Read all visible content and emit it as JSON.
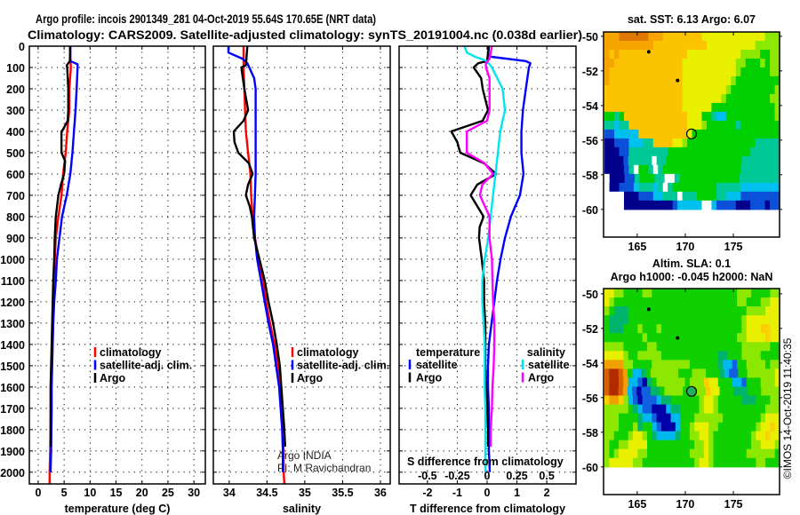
{
  "title": {
    "line1": "Argo profile: incois 2901349_281 04-Oct-2019 55.64S 170.65E (NRT data)",
    "line2": "Climatology: CARS2009. Satellite-adjusted climatology: synTS_20191004.nc (0.038d earlier)"
  },
  "credit": "©IMOS 14-Oct-2019 11:40:35",
  "attribution": [
    "Argo INDIA",
    "PI: M Ravichandran"
  ],
  "colors": {
    "climatology": "#ff0000",
    "satellite": "#0000ff",
    "argo": "#000000",
    "sal_satellite": "#00e5ee",
    "sal_argo": "#ff00ff"
  },
  "chart_data": [
    {
      "type": "line",
      "panel": "temperature",
      "xlabel": "temperature (deg C)",
      "ylabel": "depth",
      "xlim": [
        -1.7,
        32.2
      ],
      "ylim": [
        0,
        2055
      ],
      "y_inverted": true,
      "grid": true,
      "xticks": [
        0,
        5,
        10,
        15,
        20,
        25,
        30
      ],
      "xtick_labels": [
        "0",
        "5",
        "10",
        "15",
        "20",
        "25",
        "30"
      ],
      "yticks": [
        0,
        100,
        200,
        300,
        400,
        500,
        600,
        700,
        800,
        900,
        1000,
        1100,
        1200,
        1300,
        1400,
        1500,
        1600,
        1700,
        1800,
        1900,
        2000
      ],
      "ytick_labels": [
        "0",
        "100",
        "200",
        "300",
        "400",
        "500",
        "600",
        "700",
        "800",
        "900",
        "1000",
        "1100",
        "1200",
        "1300",
        "1400",
        "1500",
        "1600",
        "1700",
        "1800",
        "1900",
        "2000"
      ],
      "legend": {
        "placement": "lower-center",
        "entries": [
          {
            "label": "climatology",
            "color": "#ff0000"
          },
          {
            "label": "satellite-adj. clim.",
            "color": "#0000ff"
          },
          {
            "label": "Argo",
            "color": "#000000"
          }
        ]
      },
      "series": [
        {
          "name": "climatology",
          "color": "#ff0000",
          "depth": [
            0,
            100,
            200,
            300,
            400,
            500,
            600,
            700,
            800,
            900,
            1000,
            1100,
            1200,
            1300,
            1400,
            1500,
            1600,
            1700,
            1800,
            1900,
            2000,
            2055
          ],
          "values": [
            6.1,
            6.3,
            6.0,
            6.0,
            5.6,
            5.3,
            4.8,
            4.5,
            3.9,
            3.4,
            3.2,
            3.1,
            2.9,
            2.8,
            2.7,
            2.6,
            2.5,
            2.45,
            2.4,
            2.3,
            2.2,
            2.2
          ]
        },
        {
          "name": "satellite-adj. clim.",
          "color": "#0000ff",
          "depth": [
            0,
            70,
            85,
            100,
            200,
            300,
            400,
            500,
            600,
            700,
            800,
            900,
            1000,
            1100,
            1200,
            1300,
            1400,
            1500,
            1600,
            1700,
            1800,
            1900,
            2000
          ],
          "values": [
            6.2,
            6.2,
            7.6,
            7.6,
            7.4,
            7.2,
            6.9,
            6.6,
            6.2,
            5.5,
            4.6,
            4.1,
            3.6,
            3.4,
            3.1,
            2.9,
            2.8,
            2.7,
            2.6,
            2.6,
            2.55,
            2.5,
            2.4
          ]
        },
        {
          "name": "Argo",
          "color": "#000000",
          "depth": [
            0,
            70,
            90,
            100,
            200,
            300,
            350,
            390,
            400,
            500,
            540,
            600,
            650,
            700,
            800,
            900,
            1000,
            1100,
            1200,
            1300,
            1400,
            1500,
            1600,
            1700,
            1800,
            1880
          ],
          "values": [
            6.2,
            6.1,
            5.5,
            5.6,
            5.8,
            5.8,
            5.7,
            4.8,
            4.5,
            4.5,
            5.2,
            5.0,
            4.4,
            3.9,
            3.4,
            3.2,
            3.1,
            2.9,
            2.8,
            2.7,
            2.6,
            2.5,
            2.4,
            2.4,
            2.4,
            2.4
          ]
        }
      ]
    },
    {
      "type": "line",
      "panel": "salinity",
      "xlabel": "salinity",
      "xlim": [
        33.79,
        36.13
      ],
      "ylim": [
        0,
        2055
      ],
      "y_inverted": true,
      "grid": true,
      "xticks": [
        34,
        34.5,
        35,
        35.5,
        36
      ],
      "xtick_labels": [
        "34",
        "34.5",
        "35",
        "35.5",
        "36"
      ],
      "legend": {
        "placement": "lower-center",
        "entries": [
          {
            "label": "climatology",
            "color": "#ff0000"
          },
          {
            "label": "satellite-adj. clim.",
            "color": "#0000ff"
          },
          {
            "label": "Argo",
            "color": "#000000"
          }
        ]
      },
      "series": [
        {
          "name": "climatology",
          "color": "#ff0000",
          "depth": [
            0,
            100,
            200,
            300,
            400,
            500,
            600,
            700,
            800,
            900,
            1000,
            1100,
            1200,
            1300,
            1400,
            1500,
            1600,
            1700,
            1800,
            1900,
            2000,
            2055
          ],
          "values": [
            34.19,
            34.19,
            34.2,
            34.21,
            34.22,
            34.25,
            34.28,
            34.29,
            34.31,
            34.34,
            34.39,
            34.45,
            34.49,
            34.54,
            34.6,
            34.65,
            34.68,
            34.69,
            34.71,
            34.72,
            34.72,
            34.73
          ]
        },
        {
          "name": "satellite-adj. clim.",
          "color": "#0000ff",
          "depth": [
            0,
            30,
            60,
            80,
            150,
            200,
            300,
            400,
            500,
            600,
            700,
            800,
            900,
            1000,
            1100,
            1200,
            1300,
            1400,
            1500,
            1600,
            1700,
            1800,
            1900,
            2000
          ],
          "values": [
            33.99,
            33.99,
            34.18,
            34.24,
            34.33,
            34.35,
            34.35,
            34.35,
            34.35,
            34.35,
            34.34,
            34.33,
            34.34,
            34.37,
            34.42,
            34.47,
            34.52,
            34.58,
            34.62,
            34.66,
            34.68,
            34.7,
            34.71,
            34.71
          ]
        },
        {
          "name": "Argo",
          "color": "#000000",
          "depth": [
            0,
            90,
            100,
            200,
            300,
            350,
            400,
            450,
            500,
            550,
            600,
            650,
            700,
            750,
            800,
            900,
            1000,
            1100,
            1200,
            1300,
            1400,
            1500,
            1600,
            1700,
            1800,
            1880
          ],
          "values": [
            34.24,
            34.22,
            34.16,
            34.2,
            34.25,
            34.19,
            34.06,
            34.07,
            34.12,
            34.26,
            34.31,
            34.25,
            34.22,
            34.27,
            34.3,
            34.33,
            34.4,
            34.47,
            34.52,
            34.58,
            34.63,
            34.67,
            34.69,
            34.71,
            34.73,
            34.74
          ]
        }
      ]
    },
    {
      "type": "line",
      "panel": "difference",
      "xlabel": "T difference from climatology",
      "x2label": "S difference from climatology",
      "xlim": [
        -2.95,
        2.98
      ],
      "x2lim": [
        -0.7375,
        0.745
      ],
      "ylim": [
        0,
        2055
      ],
      "y_inverted": true,
      "grid": true,
      "xticks": [
        -2,
        -1,
        0,
        1,
        2
      ],
      "xtick_labels": [
        "-2",
        "-1",
        "0",
        "1",
        "2"
      ],
      "x2ticks": [
        -0.5,
        -0.25,
        0,
        0.25,
        0.5
      ],
      "x2tick_labels": [
        "-0.5",
        "-0.25",
        "0",
        "0.25",
        "0.5"
      ],
      "legend": {
        "placement": "lower",
        "groups": [
          {
            "title": "temperature",
            "entries": [
              {
                "label": "satellite",
                "color": "#0000ff"
              },
              {
                "label": "Argo",
                "color": "#000000"
              }
            ]
          },
          {
            "title": "salinity",
            "entries": [
              {
                "label": "satellite",
                "color": "#00e5ee"
              },
              {
                "label": "Argo",
                "color": "#ff00ff"
              }
            ]
          }
        ]
      },
      "series": [
        {
          "name": "temperature satellite",
          "axis": "T",
          "color": "#0000ff",
          "depth": [
            0,
            40,
            50,
            70,
            80,
            100,
            200,
            300,
            400,
            500,
            600,
            700,
            800,
            900,
            1000,
            1100,
            1200,
            1300,
            1400,
            1500,
            1600,
            1700,
            1800,
            1900,
            2000
          ],
          "values": [
            0.06,
            0.03,
            0.15,
            1.3,
            1.45,
            1.4,
            1.3,
            1.2,
            1.15,
            1.15,
            1.22,
            1.1,
            0.8,
            0.6,
            0.45,
            0.33,
            0.24,
            0.15,
            0.06,
            0.03,
            0.03,
            0.06,
            0.06,
            0.06,
            0.09
          ]
        },
        {
          "name": "temperature Argo",
          "axis": "T",
          "color": "#000000",
          "depth": [
            0,
            70,
            80,
            100,
            150,
            200,
            300,
            350,
            400,
            450,
            500,
            550,
            600,
            650,
            700,
            800,
            850,
            900,
            1000,
            1100,
            1200,
            1300,
            1400,
            1500,
            1600,
            1700,
            1800,
            1880
          ],
          "values": [
            0.06,
            0,
            -0.3,
            -0.45,
            -0.2,
            -0.15,
            0.03,
            -0.15,
            -1.2,
            -1.0,
            -0.9,
            -0.1,
            0.3,
            -0.33,
            -0.55,
            -0.12,
            -0.25,
            -0.27,
            -0.18,
            -0.1,
            -0.1,
            -0.06,
            -0.06,
            -0.06,
            -0.03,
            0,
            0.03,
            0.03
          ]
        },
        {
          "name": "salinity satellite",
          "axis": "S",
          "color": "#00e5ee",
          "depth": [
            0,
            30,
            50,
            70,
            100,
            200,
            300,
            400,
            500,
            600,
            700,
            800,
            900,
            1000,
            1100,
            1200,
            1300,
            1400,
            1500,
            1600,
            1700,
            1800,
            1900,
            2000
          ],
          "values": [
            -0.19,
            -0.17,
            -0.1,
            0,
            0.04,
            0.13,
            0.15,
            0.11,
            0.09,
            0.07,
            0.05,
            0.03,
            0.01,
            -0.02,
            -0.04,
            -0.04,
            -0.03,
            -0.02,
            -0.02,
            -0.02,
            -0.015,
            -0.015,
            -0.015,
            -0.015
          ]
        },
        {
          "name": "salinity Argo",
          "axis": "S",
          "color": "#ff00ff",
          "depth": [
            0,
            60,
            80,
            100,
            150,
            300,
            350,
            400,
            500,
            550,
            600,
            650,
            700,
            800,
            900,
            1000,
            1100,
            1200,
            1300,
            1400,
            1500,
            1600,
            1700,
            1800,
            1880
          ],
          "values": [
            0.04,
            0.02,
            -0.01,
            -0.01,
            0.02,
            0.02,
            0,
            -0.17,
            -0.17,
            -0.02,
            0.05,
            -0.04,
            -0.06,
            0.02,
            0.02,
            0.04,
            0.045,
            0.05,
            0.06,
            0.06,
            0.055,
            0.045,
            0.04,
            0.03,
            0.03
          ]
        }
      ]
    },
    {
      "type": "heatmap",
      "panel": "sst-map",
      "title": "sat. SST: 6.13 Argo: 6.07",
      "xlim": [
        161.5,
        179.8
      ],
      "ylim": [
        -61.6,
        -49.75
      ],
      "grid_lon": [
        161.6,
        179.8
      ],
      "grid_lat": [
        -49.75,
        -60
      ],
      "xticks": [
        165,
        170,
        175
      ],
      "xtick_labels": [
        "165",
        "170",
        "175"
      ],
      "yticks": [
        -50,
        -52,
        -54,
        -56,
        -58,
        -60
      ],
      "ytick_labels": [
        "-50",
        "-52",
        "-54",
        "-56",
        "-58",
        "-60"
      ],
      "argo_position": [
        170.65,
        -55.64
      ],
      "land_marks": [
        [
          166.2,
          -50.9
        ],
        [
          169.2,
          -52.55
        ]
      ],
      "palette": {
        "0": "#00008c",
        "1": "#0a50d8",
        "2": "#00c0f0",
        "3": "#00c896",
        "4": "#00d000",
        "5": "#8ce800",
        "6": "#e8f000",
        "7": "#fcc400",
        "8": "#f5a400",
        "9": "#e07800",
        "a": "#b03000",
        ".": "#ffffff"
      },
      "rows": [
        "888999999888777777776666666666666555",
        "888888888877777777777666666666655555",
        "878777777777777776666666666655554455",
        "887777777777777766666666666554445455",
        "877777777777777766666666666544444455",
        "877777777777777766666666665444444444",
        "777777777777777766666666654444444445",
        "777777777777777766666666544444444455",
        "777777777777777766666644444444444445",
        "443477777777777776664432244444444445",
        "332337777777777776665444444344444444",
        "112222277777777776444444444444444444",
        "001112223377776654444444444444433333",
        "000113333333344444444444444444333333",
        "0000133333.33444444444444444433333333",
        "000013.443.3444444444444444433333333",
        ".00011344433..344444444444433333333",
        ".00111233323.34444444443333322222222",
        "....00011122333.33344443322211111111",
        "....0000000000122222..21111000111011"
      ]
    },
    {
      "type": "heatmap",
      "panel": "sla-map",
      "title": "Altim. SLA: 0.1",
      "subtitle": "Argo h1000: -0.045 h2000: NaN",
      "xlim": [
        161.5,
        179.8
      ],
      "ylim": [
        -61.6,
        -49.7
      ],
      "grid_lon": [
        161.6,
        179.8
      ],
      "grid_lat": [
        -49.7,
        -60
      ],
      "xticks": [
        165,
        170,
        175
      ],
      "xtick_labels": [
        "165",
        "170",
        "175"
      ],
      "yticks": [
        -50,
        -52,
        -54,
        -56,
        -58,
        -60
      ],
      "ytick_labels": [
        "-50",
        "-52",
        "-54",
        "-56",
        "-58",
        "-60"
      ],
      "argo_position": [
        170.65,
        -55.64
      ],
      "land_marks": [
        [
          166.2,
          -50.9
        ],
        [
          169.2,
          -52.55
        ]
      ],
      "palette": {
        "0": "#0000a8",
        "1": "#1060e0",
        "2": "#00b8f0",
        "3": "#00b46e",
        "4": "#10d000",
        "5": "#8ce800",
        "6": "#e8f000",
        "7": "#fcd000",
        "8": "#f0a000",
        "9": "#d86000",
        "a": "#b02c00",
        ".": "#ffffff"
      },
      "rows": [
        "6655444455444444444444444444555444455",
        "6544444444444444444444444444554445566",
        "5433344444444444444444444444445555666",
        "4333344444444444444444444444456666666",
        "4333444544454444444444444444456667766",
        "4444444454444444444444444444556666766",
        "5555444445544444444444444444455555544",
        "6666544555554444444444443344455554444",
        "8888554444555555554444443221445555455",
        "9aa98422345555554445554443211445555556",
        "9aa9822103455555545557664442214445556",
        "9aa98210113345555445557664443334445555",
        "7887521011123344444456654444433344455",
        "5555543211000233444456654444444444555",
        "5554444322100022444555555444444445666",
        "5554445344210002445666554444444456676",
        "5544456654322223445566544444444566766",
        "5445566664444444444556544444444556665",
        "5456666554444444445556544444445555554",
        "5666665544444444444566544444444455444"
      ]
    }
  ]
}
